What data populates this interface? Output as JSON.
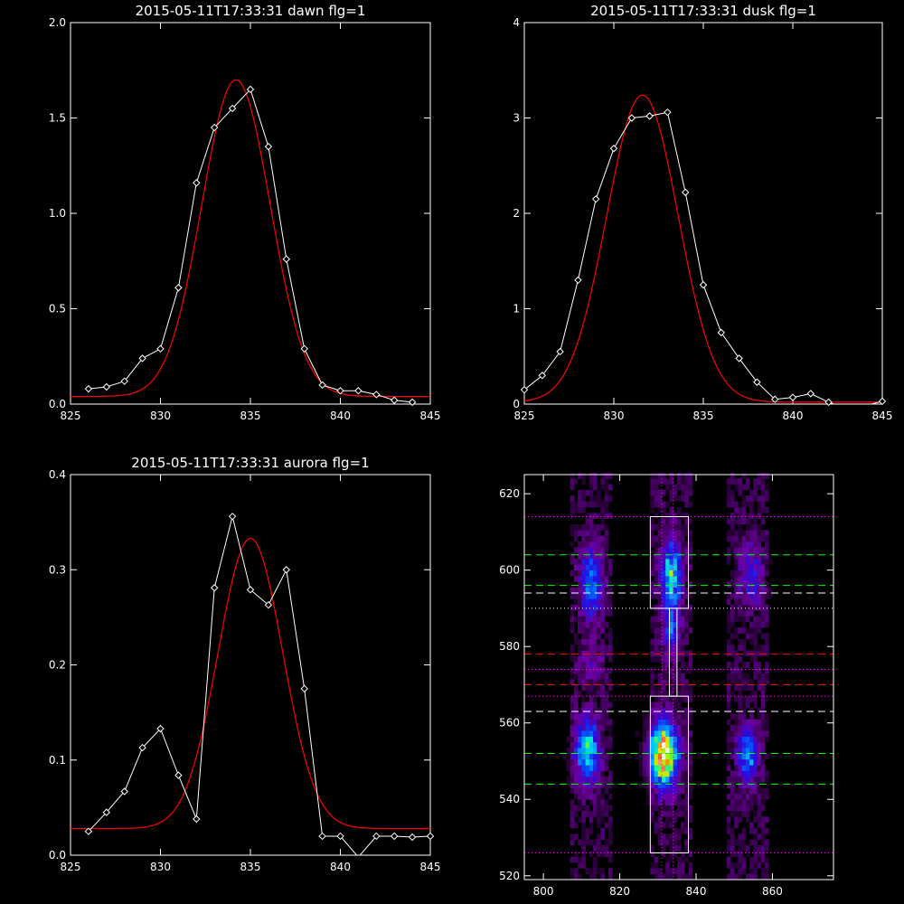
{
  "chart_data": [
    {
      "id": "dawn",
      "type": "line",
      "title": "2015-05-11T17:33:31 dawn flg=1",
      "xlim": [
        825,
        845
      ],
      "ylim": [
        0,
        2.0
      ],
      "xticks": [
        825,
        830,
        835,
        840,
        845
      ],
      "xtick_labels": [
        "825",
        "830",
        "835",
        "840",
        "845"
      ],
      "yticks": [
        0,
        0.5,
        1.0,
        1.5,
        2.0
      ],
      "ytick_labels": [
        "0.0",
        "0.5",
        "1.0",
        "1.5",
        "2.0"
      ],
      "data": {
        "x": [
          826,
          827,
          828,
          829,
          830,
          831,
          832,
          833,
          834,
          835,
          836,
          837,
          838,
          839,
          840,
          841,
          842,
          843,
          844
        ],
        "y": [
          0.08,
          0.09,
          0.12,
          0.24,
          0.29,
          0.61,
          1.16,
          1.45,
          1.55,
          1.65,
          1.35,
          0.76,
          0.29,
          0.1,
          0.07,
          0.07,
          0.05,
          0.02,
          0.01
        ]
      },
      "fit": {
        "amplitude": 1.66,
        "center": 834.2,
        "sigma": 1.9,
        "offset": 0.04
      },
      "colors": {
        "data": "#ffffff",
        "fit": "#ff0000",
        "axes": "#ffffff"
      }
    },
    {
      "id": "dusk",
      "type": "line",
      "title": "2015-05-11T17:33:31 dusk flg=1",
      "xlim": [
        825,
        845
      ],
      "ylim": [
        0,
        4
      ],
      "xticks": [
        825,
        830,
        835,
        840,
        845
      ],
      "xtick_labels": [
        "825",
        "830",
        "835",
        "840",
        "845"
      ],
      "yticks": [
        0,
        1,
        2,
        3,
        4
      ],
      "ytick_labels": [
        "0",
        "1",
        "2",
        "3",
        "4"
      ],
      "data": {
        "x": [
          825,
          826,
          827,
          828,
          829,
          830,
          831,
          832,
          833,
          834,
          835,
          836,
          837,
          838,
          839,
          840,
          841,
          842,
          843,
          844,
          845
        ],
        "y": [
          0.15,
          0.3,
          0.55,
          1.3,
          2.15,
          2.68,
          3.0,
          3.02,
          3.06,
          2.22,
          1.25,
          0.75,
          0.48,
          0.23,
          0.05,
          0.07,
          0.11,
          0.02,
          -0.05,
          -0.02,
          0.03
        ]
      },
      "fit": {
        "amplitude": 3.22,
        "center": 831.6,
        "sigma": 2.0,
        "offset": 0.02
      },
      "colors": {
        "data": "#ffffff",
        "fit": "#ff0000",
        "axes": "#ffffff"
      }
    },
    {
      "id": "aurora",
      "type": "line",
      "title": "2015-05-11T17:33:31 aurora flg=1",
      "xlim": [
        825,
        845
      ],
      "ylim": [
        0,
        0.4
      ],
      "xticks": [
        825,
        830,
        835,
        840,
        845
      ],
      "xtick_labels": [
        "825",
        "830",
        "835",
        "840",
        "845"
      ],
      "yticks": [
        0,
        0.1,
        0.2,
        0.3,
        0.4
      ],
      "ytick_labels": [
        "0.0",
        "0.1",
        "0.2",
        "0.3",
        "0.4"
      ],
      "data": {
        "x": [
          826,
          827,
          828,
          829,
          830,
          831,
          832,
          833,
          834,
          835,
          836,
          837,
          838,
          839,
          840,
          841,
          842,
          843,
          844,
          845
        ],
        "y": [
          0.025,
          0.045,
          0.067,
          0.113,
          0.133,
          0.084,
          0.038,
          0.281,
          0.356,
          0.279,
          0.263,
          0.3,
          0.175,
          0.02,
          0.02,
          -0.002,
          0.02,
          0.02,
          0.019,
          0.02
        ]
      },
      "fit": {
        "amplitude": 0.305,
        "center": 835.0,
        "sigma": 1.8,
        "offset": 0.028
      },
      "colors": {
        "data": "#ffffff",
        "fit": "#ff0000",
        "axes": "#ffffff"
      }
    },
    {
      "id": "image",
      "type": "heatmap",
      "title": "",
      "xlim": [
        795,
        876
      ],
      "ylim": [
        519,
        625
      ],
      "xticks": [
        800,
        820,
        840,
        860
      ],
      "xtick_labels": [
        "800",
        "820",
        "840",
        "860"
      ],
      "yticks": [
        520,
        540,
        560,
        580,
        600,
        620
      ],
      "ytick_labels": [
        "520",
        "540",
        "560",
        "580",
        "600",
        "620"
      ],
      "grid": false,
      "blobs": [
        {
          "x": 811,
          "y": 552,
          "sx": 2.2,
          "sy": 5.5,
          "amp": 0.55
        },
        {
          "x": 812,
          "y": 596,
          "sx": 2.0,
          "sy": 6.5,
          "amp": 0.38
        },
        {
          "x": 831,
          "y": 551,
          "sx": 2.4,
          "sy": 5.5,
          "amp": 1.0
        },
        {
          "x": 833,
          "y": 598,
          "sx": 1.8,
          "sy": 6.0,
          "amp": 0.55
        },
        {
          "x": 833,
          "y": 583,
          "sx": 1.5,
          "sy": 4.5,
          "amp": 0.32
        },
        {
          "x": 853,
          "y": 551,
          "sx": 1.8,
          "sy": 5.0,
          "amp": 0.42
        },
        {
          "x": 854,
          "y": 598,
          "sx": 2.2,
          "sy": 5.5,
          "amp": 0.25
        },
        {
          "x": 812,
          "y": 575,
          "sx": 2.0,
          "sy": 4.0,
          "amp": 0.15
        }
      ],
      "hlines": [
        {
          "y": 614,
          "style": "dotted",
          "color": "#ff00ff"
        },
        {
          "y": 604,
          "style": "dashed",
          "color": "#00ff00"
        },
        {
          "y": 596,
          "style": "dashed",
          "color": "#00ff00"
        },
        {
          "y": 594,
          "style": "dashed",
          "color": "#ffffff"
        },
        {
          "y": 590,
          "style": "dotted",
          "color": "#ffffff"
        },
        {
          "y": 578,
          "style": "dashed",
          "color": "#ff0000"
        },
        {
          "y": 570,
          "style": "dashed",
          "color": "#ff0000"
        },
        {
          "y": 574,
          "style": "dotted",
          "color": "#ff00ff"
        },
        {
          "y": 567,
          "style": "dotted",
          "color": "#ff00ff"
        },
        {
          "y": 563,
          "style": "dashed",
          "color": "#ffffff"
        },
        {
          "y": 552,
          "style": "dashed",
          "color": "#00ff00"
        },
        {
          "y": 544,
          "style": "dashed",
          "color": "#00ff00"
        },
        {
          "y": 526,
          "style": "dotted",
          "color": "#ff00ff"
        }
      ],
      "vlines": [
        {
          "x": 831,
          "style": "dotted",
          "color": "#ff00ff"
        },
        {
          "x": 834,
          "style": "dotted",
          "color": "#ff00ff"
        }
      ],
      "boxes": [
        {
          "x0": 828,
          "x1": 838,
          "y0": 590,
          "y1": 614,
          "color": "#ffffff"
        },
        {
          "x0": 828,
          "x1": 838,
          "y0": 526,
          "y1": 567,
          "color": "#ffffff"
        },
        {
          "x0": 833,
          "x1": 835,
          "y0": 567,
          "y1": 590,
          "color": "#ffffff"
        }
      ]
    }
  ]
}
